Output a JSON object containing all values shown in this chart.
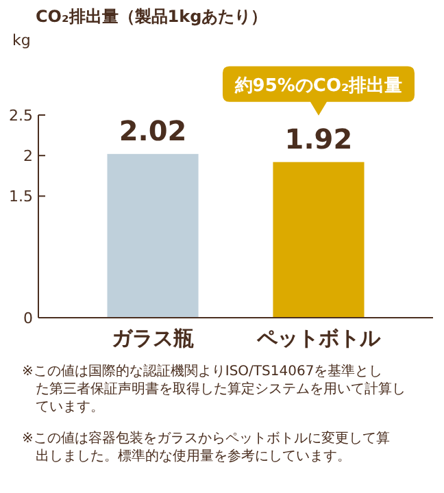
{
  "chart_data": {
    "type": "bar",
    "title": "CO₂排出量（製品1kgあたり）",
    "ylabel": "kg",
    "categories": [
      "ガラス瓶",
      "ペットボトル"
    ],
    "values": [
      2.02,
      1.92
    ],
    "colors": [
      "#bfd0db",
      "#dcaa00"
    ],
    "ylim": [
      0,
      2.5
    ],
    "yticks": [
      0,
      1.5,
      2,
      2.5
    ],
    "data_labels": true,
    "annotations": [
      "約95%のCO₂排出量",
      "※この値は国際的な認証機関よりISO/TS14067を基準とした第三者保証声明書を取得した算定システムを用いて計算しています。",
      "※この値は容器包装をガラスからペットボトルに変更して算出しました。標準的な使用量を参考にしています。"
    ]
  }
}
